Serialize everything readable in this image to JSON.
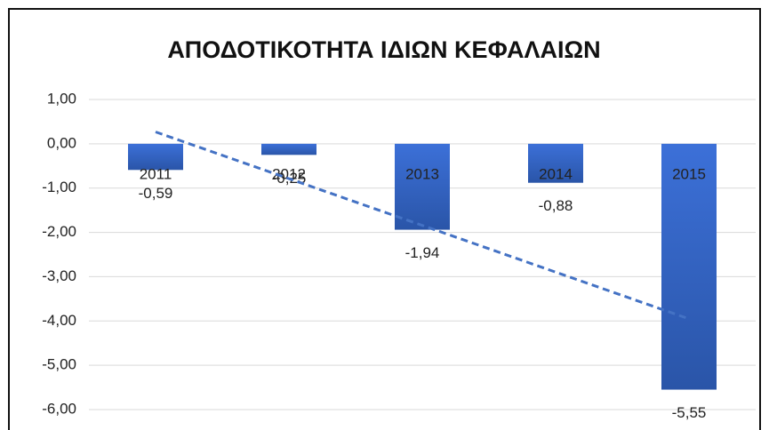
{
  "chart_data": {
    "type": "bar",
    "title": "ΑΠΟΔΟΤΙΚΟΤΗΤΑ ΙΔΙΩΝ ΚΕΦΑΛΑΙΩΝ",
    "categories": [
      "2011",
      "2012",
      "2013",
      "2014",
      "2015"
    ],
    "values": [
      -0.59,
      -0.25,
      -1.94,
      -0.88,
      -5.55
    ],
    "value_labels": [
      "-0,59",
      "-0,25",
      "-1,94",
      "-0,88",
      "-5,55"
    ],
    "color": "#3a68c4",
    "ylim": [
      -6,
      1
    ],
    "yticks": [
      {
        "value": 1,
        "label": "1,00"
      },
      {
        "value": 0,
        "label": "0,00"
      },
      {
        "value": -1,
        "label": "-1,00"
      },
      {
        "value": -2,
        "label": "-2,00"
      },
      {
        "value": -3,
        "label": "-3,00"
      },
      {
        "value": -4,
        "label": "-4,00"
      },
      {
        "value": -5,
        "label": "-5,00"
      },
      {
        "value": -6,
        "label": "-6,00"
      }
    ],
    "grid": true,
    "trendline": {
      "kind": "linear",
      "style": "dashed",
      "color": "#4472c4"
    }
  }
}
